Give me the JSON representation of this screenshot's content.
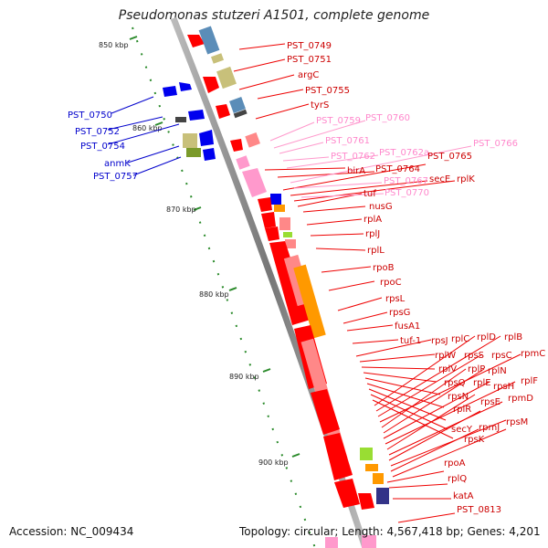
{
  "title": "Pseudomonas stutzeri A1501, complete genome",
  "footer": {
    "accession": "Accession: NC_009434",
    "summary": "Topology: circular; Length: 4,567,418 bp; Genes: 4,201"
  },
  "colors": {
    "backbone": "#8c8c8c",
    "gene_red": "#ff0000",
    "gene_pink": "#ff8888",
    "gene_lightpink": "#ff99cc",
    "gene_blue": "#0000ee",
    "gene_steel": "#5b8db8",
    "gene_khaki": "#c8c07a",
    "gene_olive": "#7a9a2a",
    "gene_orange": "#ff9900",
    "gene_green": "#99dd33",
    "gene_navy": "#333388",
    "tick": "#2a8a2a"
  },
  "scale_ticks": [
    "850 kbp",
    "860 kbp",
    "870 kbp",
    "880 kbp",
    "890 kbp",
    "900 kbp"
  ],
  "labels_right": [
    {
      "text": "PST_0749",
      "color": "#cc0000"
    },
    {
      "text": "PST_0751",
      "color": "#cc0000"
    },
    {
      "text": "argC",
      "color": "#cc0000"
    },
    {
      "text": "PST_0755",
      "color": "#cc0000"
    },
    {
      "text": "tyrS",
      "color": "#cc0000"
    },
    {
      "text": "PST_0759",
      "color": "#ff88cc"
    },
    {
      "text": "PST_0760",
      "color": "#ff88cc"
    },
    {
      "text": "PST_0761",
      "color": "#ff88cc"
    },
    {
      "text": "PST_0762",
      "color": "#ff88cc"
    },
    {
      "text": "PST_0762a",
      "color": "#ff88cc"
    },
    {
      "text": "PST_0766",
      "color": "#ff88cc"
    },
    {
      "text": "PST_0765",
      "color": "#cc0000"
    },
    {
      "text": "birA",
      "color": "#cc0000"
    },
    {
      "text": "PST_0764",
      "color": "#cc0000"
    },
    {
      "text": "secE",
      "color": "#cc0000"
    },
    {
      "text": "rplK",
      "color": "#cc0000"
    },
    {
      "text": "PST_0767",
      "color": "#ff88cc"
    },
    {
      "text": "tuf",
      "color": "#cc0000"
    },
    {
      "text": "PST_0770",
      "color": "#ff88cc"
    },
    {
      "text": "nusG",
      "color": "#cc0000"
    },
    {
      "text": "rplA",
      "color": "#cc0000"
    },
    {
      "text": "rplJ",
      "color": "#cc0000"
    },
    {
      "text": "rplL",
      "color": "#cc0000"
    },
    {
      "text": "rpoB",
      "color": "#cc0000"
    },
    {
      "text": "rpoC",
      "color": "#cc0000"
    },
    {
      "text": "rpsL",
      "color": "#cc0000"
    },
    {
      "text": "rpsG",
      "color": "#cc0000"
    },
    {
      "text": "fusA1",
      "color": "#cc0000"
    },
    {
      "text": "tuf-1",
      "color": "#cc0000"
    },
    {
      "text": "rpsJ",
      "color": "#cc0000"
    },
    {
      "text": "rplC",
      "color": "#cc0000"
    },
    {
      "text": "rplD",
      "color": "#cc0000"
    },
    {
      "text": "rplB",
      "color": "#cc0000"
    },
    {
      "text": "rplW",
      "color": "#cc0000"
    },
    {
      "text": "rpsS",
      "color": "#cc0000"
    },
    {
      "text": "rpsC",
      "color": "#cc0000"
    },
    {
      "text": "rpmC",
      "color": "#cc0000"
    },
    {
      "text": "rplV",
      "color": "#cc0000"
    },
    {
      "text": "rplP",
      "color": "#cc0000"
    },
    {
      "text": "rplN",
      "color": "#cc0000"
    },
    {
      "text": "rpsQ",
      "color": "#cc0000"
    },
    {
      "text": "rplE",
      "color": "#cc0000"
    },
    {
      "text": "rpsH",
      "color": "#cc0000"
    },
    {
      "text": "rplF",
      "color": "#cc0000"
    },
    {
      "text": "rpsN",
      "color": "#cc0000"
    },
    {
      "text": "rpsE",
      "color": "#cc0000"
    },
    {
      "text": "rpmD",
      "color": "#cc0000"
    },
    {
      "text": "rplR",
      "color": "#cc0000"
    },
    {
      "text": "secY",
      "color": "#cc0000"
    },
    {
      "text": "rpmJ",
      "color": "#cc0000"
    },
    {
      "text": "rpsM",
      "color": "#cc0000"
    },
    {
      "text": "rpsK",
      "color": "#cc0000"
    },
    {
      "text": "rpoA",
      "color": "#cc0000"
    },
    {
      "text": "rplQ",
      "color": "#cc0000"
    },
    {
      "text": "katA",
      "color": "#cc0000"
    },
    {
      "text": "PST_0813",
      "color": "#cc0000"
    }
  ],
  "labels_left": [
    {
      "text": "PST_0750",
      "color": "#0000cc"
    },
    {
      "text": "PST_0752",
      "color": "#0000cc"
    },
    {
      "text": "PST_0754",
      "color": "#0000cc"
    },
    {
      "text": "anmK",
      "color": "#0000cc"
    },
    {
      "text": "PST_0757",
      "color": "#0000cc"
    }
  ]
}
